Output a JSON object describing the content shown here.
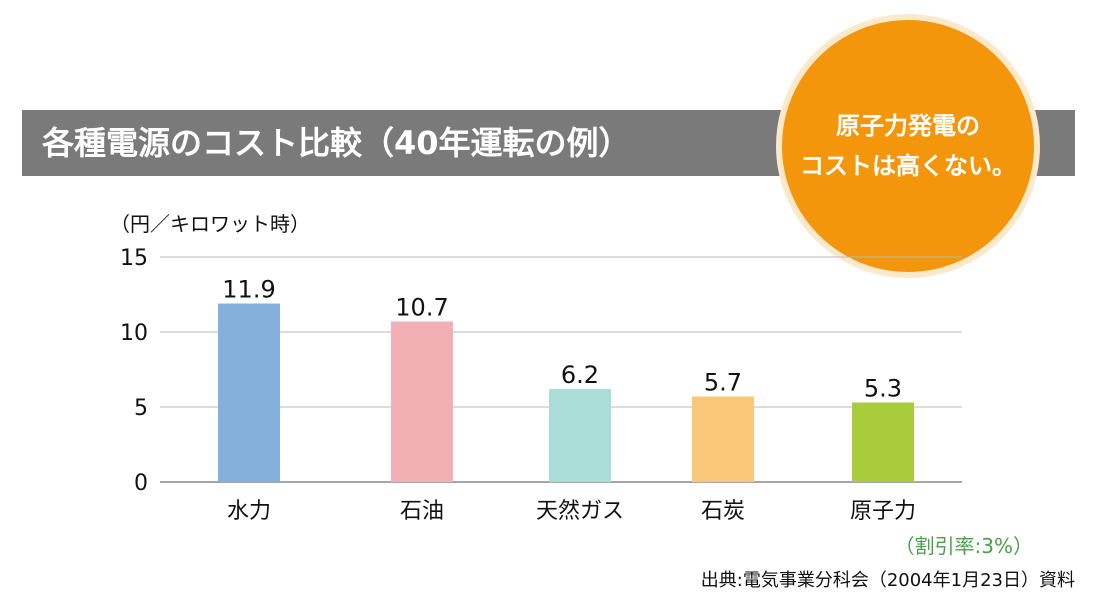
{
  "header": {
    "title": "各種電源のコスト比較（40年運転の例）"
  },
  "badge": {
    "line1": "原子力発電の",
    "line2": "コストは高くない。"
  },
  "notes": {
    "discount_rate": "（割引率:3%）",
    "source": "出典:電気事業分科会（2004年1月23日）資料"
  },
  "chart_data": {
    "type": "bar",
    "ylabel": "（円／キロワット時）",
    "categories": [
      "水力",
      "石油",
      "天然ガス",
      "石炭",
      "原子力"
    ],
    "values": [
      11.9,
      10.7,
      6.2,
      5.7,
      5.3
    ],
    "value_labels": [
      "11.9",
      "10.7",
      "6.2",
      "5.7",
      "5.3"
    ],
    "colors": [
      "#85b0dc",
      "#f2b0b4",
      "#aadcd8",
      "#f8c878",
      "#a8cc3c"
    ],
    "ylim": [
      0,
      15
    ],
    "yticks": [
      0,
      5,
      10,
      15
    ],
    "grid": true
  }
}
